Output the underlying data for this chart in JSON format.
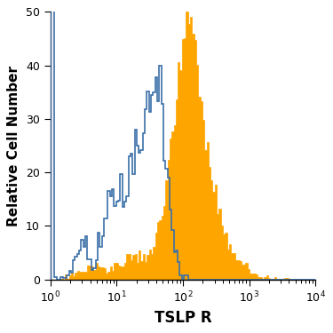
{
  "title": "",
  "xlabel": "TSLP R",
  "ylabel": "Relative Cell Number",
  "xlim_log": [
    1,
    10000
  ],
  "ylim": [
    0,
    50
  ],
  "yticks": [
    0,
    10,
    20,
    30,
    40,
    50
  ],
  "xlabel_fontsize": 12,
  "ylabel_fontsize": 11,
  "tick_fontsize": 9,
  "orange_color": "#FFA500",
  "blue_color": "#3A6FA8",
  "background_color": "#FFFFFF"
}
